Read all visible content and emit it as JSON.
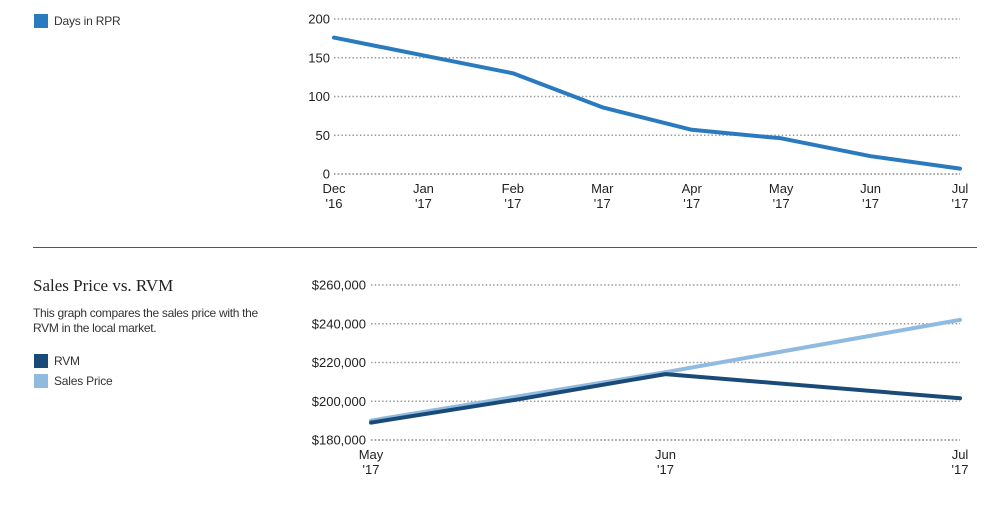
{
  "chart_data": [
    {
      "type": "line",
      "title": "",
      "xlabel": "",
      "ylabel": "",
      "categories": [
        {
          "month": "Dec",
          "year": "'16"
        },
        {
          "month": "Jan",
          "year": "'17"
        },
        {
          "month": "Feb",
          "year": "'17"
        },
        {
          "month": "Mar",
          "year": "'17"
        },
        {
          "month": "Apr",
          "year": "'17"
        },
        {
          "month": "May",
          "year": "'17"
        },
        {
          "month": "Jun",
          "year": "'17"
        },
        {
          "month": "Jul",
          "year": "'17"
        }
      ],
      "yticks": [
        "0",
        "50",
        "100",
        "150",
        "200"
      ],
      "ylim": [
        0,
        200
      ],
      "grid": true,
      "legend_position": "left",
      "series": [
        {
          "name": "Days in RPR",
          "color": "#2a7abf",
          "values": [
            176,
            153,
            130,
            86,
            57,
            46,
            23,
            7
          ]
        }
      ]
    },
    {
      "type": "line",
      "title": "Sales Price vs. RVM",
      "description": "This graph compares the sales price with the RVM in the local market.",
      "xlabel": "",
      "ylabel": "",
      "categories": [
        {
          "month": "May",
          "year": "'17"
        },
        {
          "month": "Jun",
          "year": "'17"
        },
        {
          "month": "Jul",
          "year": "'17"
        }
      ],
      "yticks": [
        "$180,000",
        "$200,000",
        "$220,000",
        "$240,000",
        "$260,000"
      ],
      "ylim": [
        180000,
        260000
      ],
      "grid": true,
      "legend_position": "left",
      "series": [
        {
          "name": "RVM",
          "color": "#1a4a78",
          "points": [
            [
              0,
              189000
            ],
            [
              0.5,
              201000
            ],
            [
              1.0,
              214000
            ],
            [
              2.0,
              201500
            ]
          ]
        },
        {
          "name": "Sales Price",
          "color": "#8fbbe0",
          "points": [
            [
              0,
              190000
            ],
            [
              1.0,
              215000
            ],
            [
              2.0,
              242000
            ]
          ]
        }
      ]
    }
  ]
}
